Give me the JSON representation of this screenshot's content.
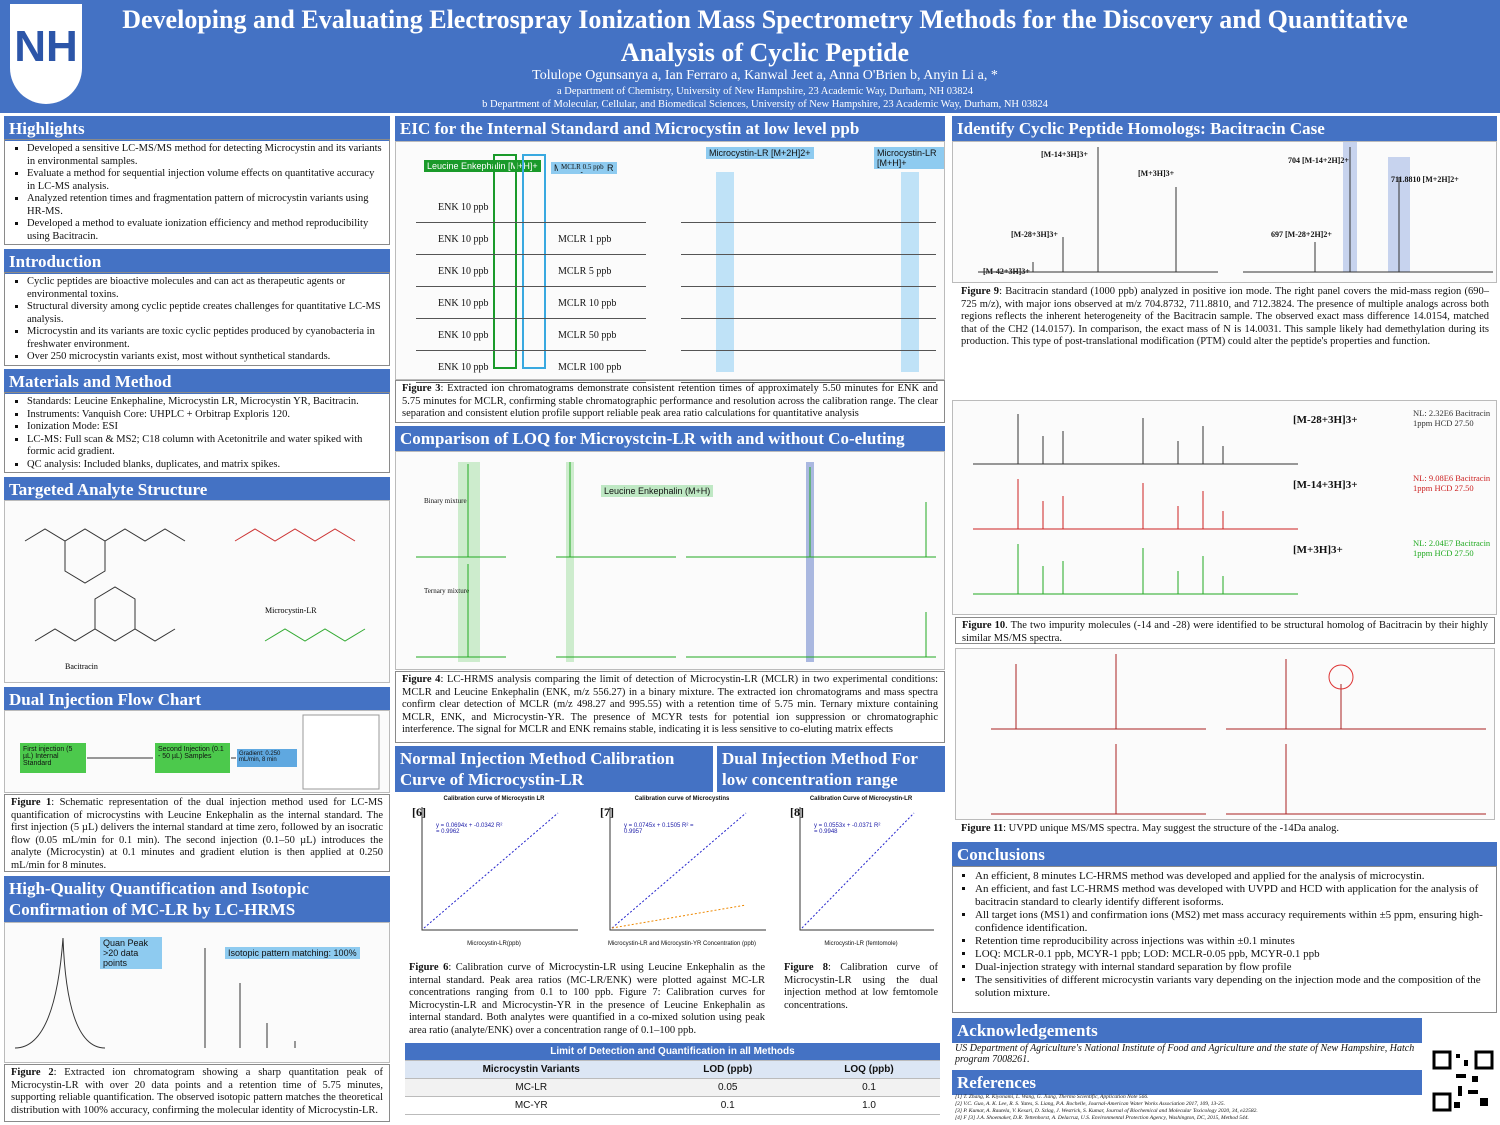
{
  "header": {
    "logo": "NH",
    "title": "Developing and Evaluating Electrospray Ionization Mass Spectrometry Methods for the Discovery and Quantitative Analysis of Cyclic Peptide",
    "authors": "Tolulope Ogunsanya a, Ian Ferraro a, Kanwal Jeet a, Anna O'Brien b, Anyin Li a, *",
    "affiliations": [
      "a Department of Chemistry, University of New Hampshire, 23 Academic Way, Durham, NH 03824",
      "b Department of Molecular, Cellular, and Biomedical Sciences, University of New Hampshire, 23 Academic Way, Durham, NH 03824"
    ]
  },
  "highlights": {
    "title": "Highlights",
    "items": [
      "Developed a sensitive LC-MS/MS method for detecting Microcystin and its variants in environmental samples.",
      "Evaluate a method for sequential injection volume effects on quantitative accuracy in LC-MS analysis.",
      "Analyzed retention times and fragmentation pattern of microcystin variants using HR-MS.",
      "Developed a method to evaluate ionization efficiency and method reproducibility using Bacitracin."
    ]
  },
  "introduction": {
    "title": "Introduction",
    "items": [
      "Cyclic peptides are bioactive molecules and can act as therapeutic agents or environmental toxins.",
      "Structural diversity among cyclic peptide creates challenges for quantitative LC-MS analysis.",
      "Microcystin and its variants are toxic cyclic peptides produced by cyanobacteria in freshwater environment.",
      "Over 250 microcystin variants exist, most without synthetical standards."
    ]
  },
  "materials": {
    "title": "Materials and Method",
    "items": [
      "Standards: Leucine Enkephaline, Microcystin LR, Microcystin YR, Bacitracin.",
      "Instruments: Vanquish Core:  UHPLC + Orbitrap Exploris 120.",
      "Ionization Mode: ESI",
      "LC-MS: Full scan & MS2; C18 column with Acetonitrile and water spiked with formic acid gradient.",
      "QC analysis: Included blanks, duplicates, and matrix spikes."
    ]
  },
  "structure": {
    "title": "Targeted Analyte Structure",
    "labels": [
      "Bacitracin",
      "Microcystin-LR"
    ]
  },
  "flowchart": {
    "title": "Dual Injection Flow Chart",
    "boxes": [
      "First injection (5 µL) Internal Standard",
      "Second Injection (0.1 - 50 µL) Samples",
      "Gradient: 0.250 mL/min, 8 min"
    ],
    "caption_label": "Figure 1",
    "caption": ": Schematic representation of the dual injection method used for LC-MS quantification of microcystins with Leucine Enkephalin as the internal standard. The first injection (5 µL) delivers the internal standard at time zero, followed by an isocratic flow (0.05 mL/min for 0.1 min). The second injection (0.1–50 µL) introduces the analyte (Microcystin) at 0.1 minutes and gradient elution is then applied at 0.250 mL/min for 8 minutes."
  },
  "quant": {
    "title": "High-Quality Quantification and Isotopic Confirmation of MC-LR by LC-HRMS",
    "labels": [
      "Quan Peak >20 data points",
      "Isotopic pattern matching: 100%"
    ],
    "caption_label": "Figure 2",
    "caption": ": Extracted ion chromatogram showing a sharp quantitation peak of Microcystin-LR with over 20 data points and a retention time of 5.75 minutes, supporting reliable quantification. The observed isotopic pattern matches the theoretical distribution with 100% accuracy, confirming the molecular identity of Microcystin-LR."
  },
  "eic": {
    "title": "EIC for the Internal Standard and Microcystin at low level ppb",
    "enk": [
      "ENK 10 ppb",
      "ENK 10 ppb",
      "ENK 10 ppb",
      "ENK 10 ppb",
      "ENK 10 ppb",
      "ENK 10 ppb"
    ],
    "mclr": [
      "MCLR 0.5 ppb",
      "MCLR 1 ppb",
      "MCLR 5  ppb",
      "MCLR 10 ppb",
      "MCLR 50 ppb",
      "MCLR 100 ppb"
    ],
    "tags": [
      "Leucine Enkephalin [M+H]+",
      "Microcystin-LR",
      "Microcystin-LR [M+2H]2+",
      "Microcystin-LR [M+H]+"
    ],
    "caption_label": "Figure 3",
    "caption": ": Extracted ion chromatograms demonstrate consistent retention times of approximately 5.50 minutes for ENK and 5.75 minutes for MCLR, confirming stable chromatographic performance and resolution across the calibration range. The clear separation and consistent elution profile support reliable peak area ratio calculations for quantitative analysis"
  },
  "loq": {
    "title": "Comparison of LOQ for Microystcin-LR with and without Co-eluting",
    "labels": [
      "Binary mixture",
      "Ternary mixture",
      "Leucine Enkephalin (M+H)"
    ],
    "caption_label": "Figure 4",
    "caption": ": LC-HRMS analysis comparing the limit of detection of Microcystin-LR (MCLR) in two experimental conditions: MCLR and Leucine Enkephalin (ENK, m/z 556.27) in a binary mixture. The extracted ion chromatograms and mass spectra confirm clear detection of MCLR (m/z 498.27 and 995.55) with a retention time of 5.75 min. Ternary mixture containing MCLR, ENK, and Microcystin-YR. The presence of MCYR tests for potential ion suppression or chromatographic interference.  The signal for MCLR and ENK remains stable, indicating it is less sensitive to co-eluting matrix effects"
  },
  "calib": {
    "title_normal": "Normal Injection Method Calibration Curve of Microcystin-LR",
    "title_dual": "Dual Injection Method For low concentration range",
    "panels": [
      {
        "tag": "[6]",
        "title": "Calibration curve of Microcystin LR",
        "eq": "y = 0.0694x + -0.0342  R² = 0.9962",
        "xlabel": "Microcystin-LR(ppb)"
      },
      {
        "tag": "[7]",
        "title": "Calibration curve of Microcystins",
        "eq": "y = 0.0745x + 0.1505  R² = 0.9957",
        "xlabel": "Microcystin-LR and Microcystin-YR Concentration (ppb)"
      },
      {
        "tag": "[8]",
        "title": "Calibration Curve of Microcystin-LR",
        "eq": "y = 0.0553x + -0.0371  R² = 0.9948",
        "xlabel": "Microcystin-LR (femtomole)"
      }
    ],
    "caption67_label": "Figure 6",
    "caption67": ": Calibration curve of Microcystin-LR  using Leucine Enkephalin as the internal standard. Peak area ratios (MC-LR/ENK) were plotted against MC-LR concentrations ranging from 0.1 to 100 ppb. Figure 7: Calibration curves for Microcystin-LR and Microcystin-YR in the presence of Leucine Enkephalin as internal standard. Both analytes were quantified in a co-mixed solution using peak area ratio (analyte/ENK) over a concentration range of 0.1–100 ppb.",
    "caption8_label": "Figure 8",
    "caption8": ": Calibration curve of Microcystin-LR using the dual injection method at low femtomole concentrations."
  },
  "table": {
    "title": "Limit of Detection and Quantification in all Methods",
    "columns": [
      "Microcystin Variants",
      "LOD  (ppb)",
      "LOQ  (ppb)"
    ],
    "rows": [
      [
        "MC-LR",
        "0.05",
        "0.1"
      ],
      [
        "MC-YR",
        "0.1",
        "1.0"
      ]
    ]
  },
  "homologs": {
    "title": "Identify Cyclic Peptide Homologs: Bacitracin Case",
    "labels": [
      "[M-14+3H]3+",
      "[M+3H]3+",
      "[M-28+3H]3+",
      "[M-42+3H]3+",
      "704 [M-14+2H]2+",
      "711.8810 [M+2H]2+",
      "697 [M-28+2H]2+"
    ],
    "caption9_label": "Figure 9",
    "caption9": ": Bacitracin standard (1000 ppb) analyzed in positive ion mode. The right panel covers the mid-mass region (690–725 m/z), with major ions observed at m/z 704.8732, 711.8810, and 712.3824. The presence of multiple analogs across both regions reflects the inherent heterogeneity of the Bacitracin sample. The observed exact mass difference 14.0154, matched that of the CH2 (14.0157). In comparison, the exact mass of N is 14.0031. This sample likely had demethylation during its production. This type of post-translational modification (PTM) could alter the peptide's properties and function.",
    "ms2": [
      {
        "ion": "[M-28+3H]3+",
        "info": "NL: 2.32E6 Bacitracin 1ppm HCD 27.50"
      },
      {
        "ion": "[M-14+3H]3+",
        "info": "NL: 9.08E6 Bacitracin 1ppm HCD 27.50"
      },
      {
        "ion": "[M+3H]3+",
        "info": "NL: 2.04E7 Bacitracin 1ppm HCD 27.50"
      }
    ],
    "caption10_label": "Figure 10",
    "caption10": ". The two impurity molecules (-14 and -28) were identified to be structural homolog of Bacitracin by their highly similar MS/MS spectra.",
    "caption11_label": "Figure 11",
    "caption11": ": UVPD unique MS/MS spectra. May suggest the structure of the -14Da analog."
  },
  "conclusions": {
    "title": "Conclusions",
    "items": [
      "An efficient, 8 minutes LC-HRMS method was developed and applied for the analysis of microcystin.",
      "An efficient, and fast LC-HRMS method was developed with UVPD and HCD with application for the analysis of bacitracin standard to clearly identify different isoforms.",
      "All target ions (MS1) and confirmation ions (MS2) met mass accuracy requirements within ±5 ppm, ensuring high-confidence identification.",
      "Retention time reproducibility across injections was within ±0.1 minutes",
      "LOQ: MCLR-0.1 ppb, MCYR-1 ppb; LOD: MCLR-0.05 ppb, MCYR-0.1 ppb",
      "Dual-injection strategy with internal standard separation by flow profile",
      "The sensitivities of different microcystin variants vary depending on the injection mode and the composition of the solution mixture."
    ]
  },
  "acknowledgements": {
    "title": "Acknowledgements",
    "text": "US Department of Agriculture's National Institute of Food and Agriculture and the state of New Hampshire, Hatch program 7008261."
  },
  "references": {
    "title": "References",
    "items": [
      "[1]   T. Zhang, R. Kiyonami, L. Wang, G. Jiang, Thermo Scientific, Application Note 566.",
      "[2]   V.C. Guo, A. K. Lee, R. S. Yates, S. Liang, P.A. Rochelle, Journal-American Water Works Association 2017, 109, 13-25.",
      "[3]   P. Kumar, A. Rautela, V. Kesari, D. Szlag, J. Westrick, S. Kumar, Journal of Biochemical and Molecular Toxicology 2020, 34, e22582.",
      "[4]   F [3]   J.A. Shoemaker, D.R. Tettenhorst, A. Delacruz, U.S. Environmental Protection Agency, Washington, DC, 2015, Method 544."
    ]
  }
}
